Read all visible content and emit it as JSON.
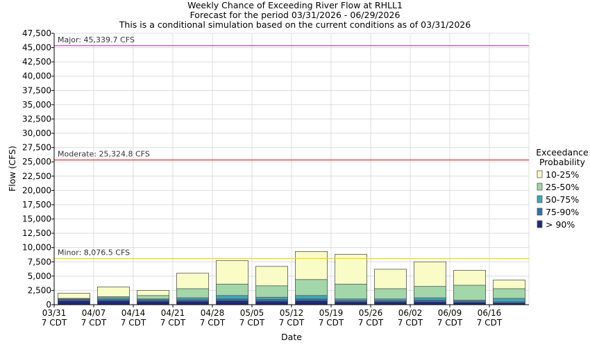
{
  "chart_data": {
    "type": "bar",
    "stacked": true,
    "title": "Weekly Chance of Exceeding River Flow at RHLL1",
    "subtitle_lines": [
      "Forecast for the period 03/31/2026 - 06/29/2026",
      "This is a conditional simulation based on the current conditions as of 03/31/2026"
    ],
    "xlabel": "Date",
    "ylabel": "Flow (CFS)",
    "ylim": [
      0,
      47500
    ],
    "ytick_step": 2500,
    "grid": true,
    "categories": [
      {
        "date": "03/31",
        "tz": "7 CDT"
      },
      {
        "date": "04/07",
        "tz": "7 CDT"
      },
      {
        "date": "04/14",
        "tz": "7 CDT"
      },
      {
        "date": "04/21",
        "tz": "7 CDT"
      },
      {
        "date": "04/28",
        "tz": "7 CDT"
      },
      {
        "date": "05/05",
        "tz": "7 CDT"
      },
      {
        "date": "05/12",
        "tz": "7 CDT"
      },
      {
        "date": "05/19",
        "tz": "7 CDT"
      },
      {
        "date": "05/26",
        "tz": "7 CDT"
      },
      {
        "date": "06/02",
        "tz": "7 CDT"
      },
      {
        "date": "06/09",
        "tz": "7 CDT"
      },
      {
        "date": "06/16",
        "tz": "7 CDT"
      }
    ],
    "legend": {
      "title_lines": [
        "Exceedance",
        "Probability"
      ],
      "placement": "right"
    },
    "series": [
      {
        "name": "> 90%",
        "color": "#1f2a7a",
        "values": [
          700,
          700,
          600,
          600,
          700,
          600,
          700,
          500,
          500,
          500,
          400,
          300
        ]
      },
      {
        "name": "75-90%",
        "color": "#2b73ad",
        "values": [
          900,
          900,
          850,
          850,
          1000,
          900,
          1000,
          700,
          700,
          800,
          600,
          500
        ]
      },
      {
        "name": "50-75%",
        "color": "#3fa8b5",
        "values": [
          1000,
          1200,
          1000,
          1200,
          1600,
          1300,
          1600,
          1000,
          1000,
          1200,
          800,
          1100
        ]
      },
      {
        "name": "25-50%",
        "color": "#a3d6a8",
        "values": [
          1100,
          1400,
          1600,
          2800,
          3600,
          3300,
          4400,
          3600,
          2800,
          3200,
          3400,
          2800
        ]
      },
      {
        "name": "10-25%",
        "color": "#fafcc8",
        "values": [
          2000,
          3100,
          2500,
          5500,
          7700,
          6700,
          9300,
          8800,
          6200,
          7500,
          6000,
          4300
        ]
      }
    ],
    "legend_order": [
      "10-25%",
      "25-50%",
      "50-75%",
      "75-90%",
      "> 90%"
    ],
    "thresholds": [
      {
        "label": "Major: 45,339.7 CFS",
        "value": 45339.7,
        "color": "#cc44cc"
      },
      {
        "label": "Moderate: 25,324.8 CFS",
        "value": 25324.8,
        "color": "#dd3333"
      },
      {
        "label": "Minor: 8,076.5 CFS",
        "value": 8076.5,
        "color": "#e8e000"
      }
    ]
  }
}
